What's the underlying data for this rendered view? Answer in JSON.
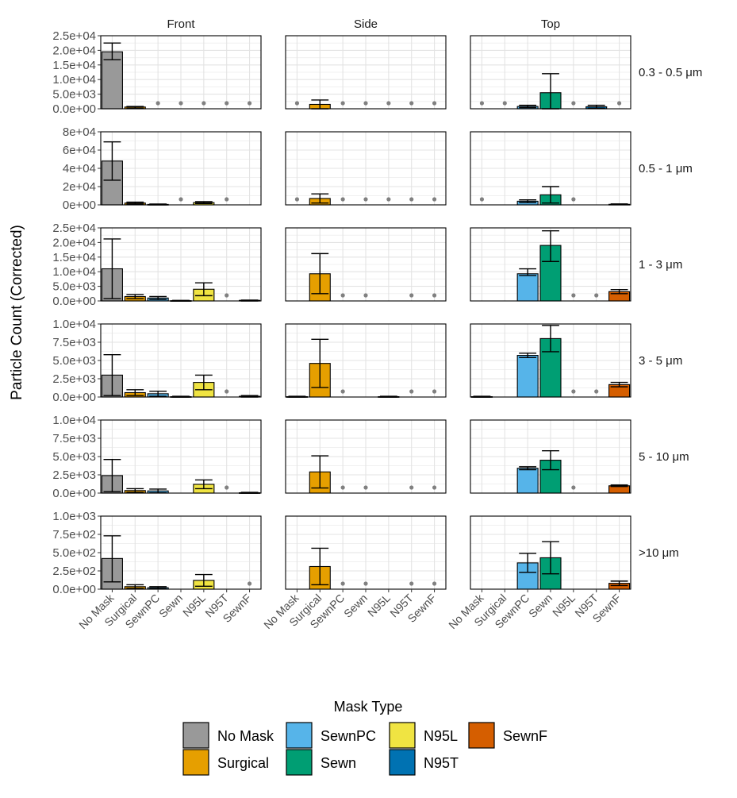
{
  "chart_data": {
    "type": "bar",
    "ylabel": "Particle Count (Corrected)",
    "xlabel": "",
    "columns": [
      "Front",
      "Side",
      "Top"
    ],
    "rows": [
      "0.3 - 0.5 μm",
      "0.5 - 1 μm",
      "1 - 3 μm",
      "3 - 5 μm",
      "5 - 10 μm",
      ">10 μm"
    ],
    "categories": [
      "No Mask",
      "Surgical",
      "SewnPC",
      "Sewn",
      "N95L",
      "N95T",
      "SewnF"
    ],
    "colors": {
      "No Mask": "#999999",
      "Surgical": "#E69F00",
      "SewnPC": "#56B4E9",
      "Sewn": "#009E73",
      "N95L": "#F0E442",
      "N95T": "#0072B2",
      "SewnF": "#D55E00"
    },
    "row_axes": [
      {
        "max": 25000,
        "ticks": [
          0,
          5000,
          10000,
          15000,
          20000,
          25000
        ],
        "tick_labels": [
          "0.0e+00",
          "5.0e+03",
          "1.0e+04",
          "1.5e+04",
          "2.0e+04",
          "2.5e+04"
        ]
      },
      {
        "max": 80000,
        "ticks": [
          0,
          20000,
          40000,
          60000,
          80000
        ],
        "tick_labels": [
          "0e+00",
          "2e+04",
          "4e+04",
          "6e+04",
          "8e+04"
        ]
      },
      {
        "max": 25000,
        "ticks": [
          0,
          5000,
          10000,
          15000,
          20000,
          25000
        ],
        "tick_labels": [
          "0.0e+00",
          "5.0e+03",
          "1.0e+04",
          "1.5e+04",
          "2.0e+04",
          "2.5e+04"
        ]
      },
      {
        "max": 10000,
        "ticks": [
          0,
          2500,
          5000,
          7500,
          10000
        ],
        "tick_labels": [
          "0.0e+00",
          "2.5e+03",
          "5.0e+03",
          "7.5e+03",
          "1.0e+04"
        ]
      },
      {
        "max": 10000,
        "ticks": [
          0,
          2500,
          5000,
          7500,
          10000
        ],
        "tick_labels": [
          "0.0e+00",
          "2.5e+03",
          "5.0e+03",
          "7.5e+03",
          "1.0e+04"
        ]
      },
      {
        "max": 1000,
        "ticks": [
          0,
          250,
          500,
          750,
          1000
        ],
        "tick_labels": [
          "0.0e+00",
          "2.5e+02",
          "5.0e+02",
          "7.5e+02",
          "1.0e+03"
        ]
      }
    ],
    "panels": [
      [
        {
          "bars": [
            {
              "cat": "No Mask",
              "value": 19500,
              "lo": 16800,
              "hi": 22500
            },
            {
              "cat": "Surgical",
              "value": 600,
              "lo": 200,
              "hi": 800
            }
          ],
          "missing": [
            "SewnPC",
            "Sewn",
            "N95L",
            "N95T",
            "SewnF"
          ]
        },
        {
          "bars": [
            {
              "cat": "Surgical",
              "value": 1500,
              "lo": 0,
              "hi": 3000
            }
          ],
          "missing": [
            "No Mask",
            "SewnPC",
            "Sewn",
            "N95L",
            "N95T",
            "SewnF"
          ]
        },
        {
          "bars": [
            {
              "cat": "SewnPC",
              "value": 800,
              "lo": 400,
              "hi": 1200
            },
            {
              "cat": "Sewn",
              "value": 5500,
              "lo": 0,
              "hi": 12000
            },
            {
              "cat": "N95T",
              "value": 700,
              "lo": 200,
              "hi": 1200
            }
          ],
          "missing": [
            "No Mask",
            "Surgical",
            "N95L",
            "SewnF"
          ]
        }
      ],
      [
        {
          "bars": [
            {
              "cat": "No Mask",
              "value": 48000,
              "lo": 27000,
              "hi": 69000
            },
            {
              "cat": "Surgical",
              "value": 2000,
              "lo": 1000,
              "hi": 3000
            },
            {
              "cat": "SewnPC",
              "value": 500,
              "lo": 100,
              "hi": 900
            },
            {
              "cat": "N95L",
              "value": 2500,
              "lo": 1500,
              "hi": 3500
            }
          ],
          "missing": [
            "Sewn",
            "N95T"
          ]
        },
        {
          "bars": [
            {
              "cat": "Surgical",
              "value": 7000,
              "lo": 2000,
              "hi": 12000
            }
          ],
          "missing": [
            "No Mask",
            "SewnPC",
            "Sewn",
            "N95L",
            "N95T",
            "SewnF"
          ]
        },
        {
          "bars": [
            {
              "cat": "SewnPC",
              "value": 4000,
              "lo": 2500,
              "hi": 5500
            },
            {
              "cat": "Sewn",
              "value": 11000,
              "lo": 2000,
              "hi": 20000
            },
            {
              "cat": "SewnF",
              "value": 600,
              "lo": 200,
              "hi": 1000
            }
          ],
          "missing": [
            "No Mask",
            "N95L"
          ]
        }
      ],
      [
        {
          "bars": [
            {
              "cat": "No Mask",
              "value": 11000,
              "lo": 800,
              "hi": 21200
            },
            {
              "cat": "Surgical",
              "value": 1500,
              "lo": 800,
              "hi": 2200
            },
            {
              "cat": "SewnPC",
              "value": 1000,
              "lo": 500,
              "hi": 1500
            },
            {
              "cat": "Sewn",
              "value": 100,
              "lo": 0,
              "hi": 200
            },
            {
              "cat": "N95L",
              "value": 4000,
              "lo": 1800,
              "hi": 6200
            },
            {
              "cat": "SewnF",
              "value": 200,
              "lo": 0,
              "hi": 300
            }
          ],
          "missing": [
            "N95T"
          ]
        },
        {
          "bars": [
            {
              "cat": "Surgical",
              "value": 9300,
              "lo": 2500,
              "hi": 16200
            }
          ],
          "missing": [
            "SewnPC",
            "Sewn",
            "N95T",
            "SewnF"
          ]
        },
        {
          "bars": [
            {
              "cat": "SewnPC",
              "value": 9300,
              "lo": 8700,
              "hi": 11000
            },
            {
              "cat": "Sewn",
              "value": 19000,
              "lo": 13500,
              "hi": 24000
            },
            {
              "cat": "SewnF",
              "value": 3200,
              "lo": 2500,
              "hi": 3900
            }
          ],
          "missing": [
            "N95L",
            "N95T"
          ]
        }
      ],
      [
        {
          "bars": [
            {
              "cat": "No Mask",
              "value": 3000,
              "lo": 200,
              "hi": 5800
            },
            {
              "cat": "Surgical",
              "value": 600,
              "lo": 200,
              "hi": 1000
            },
            {
              "cat": "SewnPC",
              "value": 450,
              "lo": 100,
              "hi": 800
            },
            {
              "cat": "Sewn",
              "value": 50,
              "lo": 0,
              "hi": 100
            },
            {
              "cat": "N95L",
              "value": 2000,
              "lo": 1000,
              "hi": 3000
            },
            {
              "cat": "SewnF",
              "value": 100,
              "lo": 0,
              "hi": 200
            }
          ],
          "missing": [
            "N95T"
          ]
        },
        {
          "bars": [
            {
              "cat": "No Mask",
              "value": 50,
              "lo": 0,
              "hi": 100
            },
            {
              "cat": "Surgical",
              "value": 4600,
              "lo": 1300,
              "hi": 7900
            },
            {
              "cat": "N95L",
              "value": 50,
              "lo": 0,
              "hi": 100
            }
          ],
          "missing": [
            "SewnPC",
            "N95T",
            "SewnF"
          ]
        },
        {
          "bars": [
            {
              "cat": "No Mask",
              "value": 50,
              "lo": 0,
              "hi": 100
            },
            {
              "cat": "SewnPC",
              "value": 5700,
              "lo": 5400,
              "hi": 6000
            },
            {
              "cat": "Sewn",
              "value": 8000,
              "lo": 6200,
              "hi": 9800
            },
            {
              "cat": "SewnF",
              "value": 1700,
              "lo": 1400,
              "hi": 2000
            }
          ],
          "missing": [
            "N95L",
            "N95T"
          ]
        }
      ],
      [
        {
          "bars": [
            {
              "cat": "No Mask",
              "value": 2400,
              "lo": 200,
              "hi": 4600
            },
            {
              "cat": "Surgical",
              "value": 350,
              "lo": 100,
              "hi": 600
            },
            {
              "cat": "SewnPC",
              "value": 300,
              "lo": 50,
              "hi": 550
            },
            {
              "cat": "N95L",
              "value": 1200,
              "lo": 600,
              "hi": 1800
            },
            {
              "cat": "SewnF",
              "value": 50,
              "lo": 0,
              "hi": 100
            }
          ],
          "missing": [
            "N95T"
          ]
        },
        {
          "bars": [
            {
              "cat": "Surgical",
              "value": 2900,
              "lo": 700,
              "hi": 5100
            }
          ],
          "missing": [
            "SewnPC",
            "Sewn",
            "N95T",
            "SewnF"
          ]
        },
        {
          "bars": [
            {
              "cat": "SewnPC",
              "value": 3400,
              "lo": 3200,
              "hi": 3600
            },
            {
              "cat": "Sewn",
              "value": 4500,
              "lo": 3200,
              "hi": 5800
            },
            {
              "cat": "SewnF",
              "value": 1000,
              "lo": 900,
              "hi": 1100
            }
          ],
          "missing": [
            "N95L"
          ]
        }
      ],
      [
        {
          "bars": [
            {
              "cat": "No Mask",
              "value": 420,
              "lo": 100,
              "hi": 730
            },
            {
              "cat": "Surgical",
              "value": 35,
              "lo": 10,
              "hi": 60
            },
            {
              "cat": "SewnPC",
              "value": 20,
              "lo": 5,
              "hi": 35
            },
            {
              "cat": "N95L",
              "value": 120,
              "lo": 40,
              "hi": 200
            }
          ],
          "missing": [
            "SewnF"
          ]
        },
        {
          "bars": [
            {
              "cat": "Surgical",
              "value": 310,
              "lo": 60,
              "hi": 560
            }
          ],
          "missing": [
            "SewnPC",
            "Sewn",
            "N95T",
            "SewnF"
          ]
        },
        {
          "bars": [
            {
              "cat": "SewnPC",
              "value": 360,
              "lo": 230,
              "hi": 490
            },
            {
              "cat": "Sewn",
              "value": 430,
              "lo": 210,
              "hi": 650
            },
            {
              "cat": "SewnF",
              "value": 80,
              "lo": 50,
              "hi": 110
            }
          ],
          "missing": []
        }
      ]
    ],
    "legend": {
      "title": "Mask Type",
      "position": "bottom",
      "columns": [
        [
          "No Mask",
          "Surgical"
        ],
        [
          "SewnPC",
          "Sewn"
        ],
        [
          "N95L",
          "N95T"
        ],
        [
          "SewnF"
        ]
      ]
    }
  }
}
